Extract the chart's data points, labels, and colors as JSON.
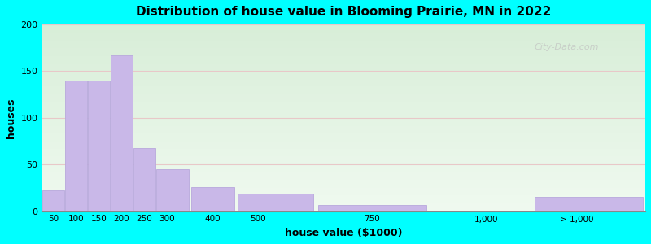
{
  "title": "Distribution of house value in Blooming Prairie, MN in 2022",
  "xlabel": "house value ($1000)",
  "ylabel": "houses",
  "bar_color": "#c9b8e8",
  "bar_edge_color": "#b8a8dc",
  "background_color": "#00ffff",
  "plot_bg_top": "#d8eed8",
  "plot_bg_bottom": "#f0faf0",
  "ylim": [
    0,
    200
  ],
  "yticks": [
    0,
    50,
    100,
    150,
    200
  ],
  "tick_labels": [
    "50",
    "100",
    "150",
    "200",
    "250",
    "300",
    "400",
    "500",
    "750",
    "1,000",
    "> 1,000"
  ],
  "tick_positions": [
    50,
    100,
    150,
    200,
    250,
    300,
    400,
    500,
    750,
    1000,
    1200
  ],
  "bin_edges": [
    25,
    75,
    125,
    175,
    225,
    275,
    350,
    450,
    625,
    875,
    1100,
    1350
  ],
  "values": [
    22,
    140,
    140,
    167,
    68,
    45,
    26,
    19,
    7,
    0,
    15
  ],
  "watermark": "City-Data.com"
}
